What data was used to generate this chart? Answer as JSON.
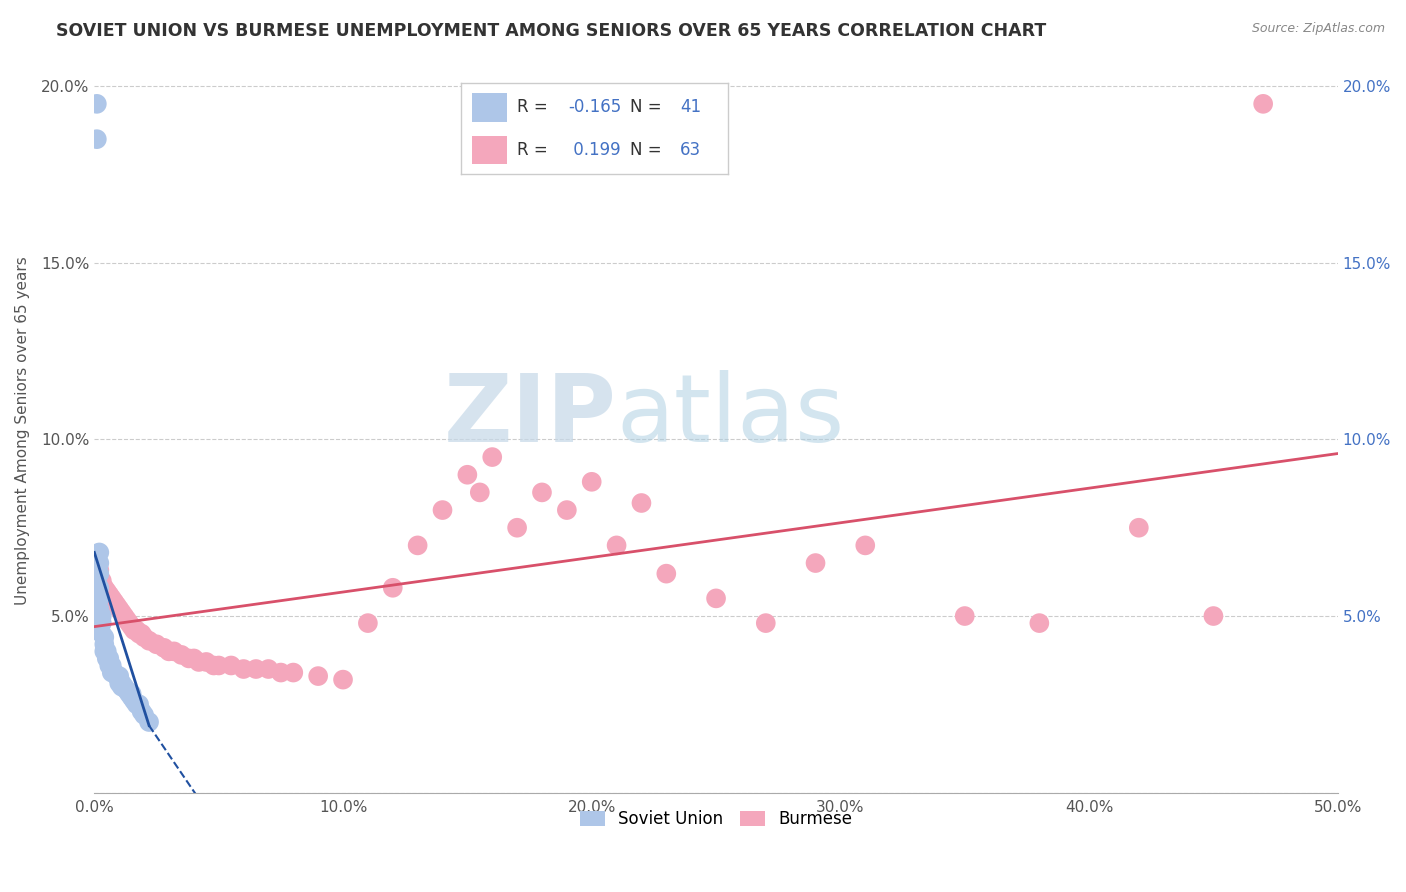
{
  "title": "SOVIET UNION VS BURMESE UNEMPLOYMENT AMONG SENIORS OVER 65 YEARS CORRELATION CHART",
  "source": "Source: ZipAtlas.com",
  "ylabel": "Unemployment Among Seniors over 65 years",
  "xlim": [
    0.0,
    0.5
  ],
  "ylim": [
    0.0,
    0.205
  ],
  "xticks": [
    0.0,
    0.1,
    0.2,
    0.3,
    0.4,
    0.5
  ],
  "xticklabels": [
    "0.0%",
    "10.0%",
    "20.0%",
    "30.0%",
    "40.0%",
    "50.0%"
  ],
  "yticks": [
    0.0,
    0.05,
    0.1,
    0.15,
    0.2
  ],
  "yticklabels_left": [
    "",
    "5.0%",
    "10.0%",
    "15.0%",
    "20.0%"
  ],
  "yticklabels_right": [
    "",
    "5.0%",
    "10.0%",
    "15.0%",
    "20.0%"
  ],
  "soviet_color": "#aec6e8",
  "burmese_color": "#f4a7bc",
  "soviet_line_color": "#2050a0",
  "burmese_line_color": "#d8506a",
  "soviet_R": -0.165,
  "soviet_N": 41,
  "burmese_R": 0.199,
  "burmese_N": 63,
  "legend_label_soviet": "Soviet Union",
  "legend_label_burmese": "Burmese",
  "watermark_zip": "ZIP",
  "watermark_atlas": "atlas",
  "background_color": "#ffffff",
  "soviet_x": [
    0.001,
    0.001,
    0.001,
    0.001,
    0.001,
    0.002,
    0.002,
    0.002,
    0.002,
    0.002,
    0.002,
    0.003,
    0.003,
    0.003,
    0.004,
    0.004,
    0.004,
    0.005,
    0.005,
    0.006,
    0.006,
    0.007,
    0.007,
    0.008,
    0.009,
    0.01,
    0.01,
    0.01,
    0.011,
    0.011,
    0.012,
    0.013,
    0.014,
    0.015,
    0.015,
    0.016,
    0.017,
    0.018,
    0.019,
    0.02,
    0.022
  ],
  "soviet_y": [
    0.195,
    0.185,
    0.065,
    0.06,
    0.055,
    0.068,
    0.065,
    0.062,
    0.058,
    0.055,
    0.052,
    0.05,
    0.048,
    0.045,
    0.044,
    0.042,
    0.04,
    0.04,
    0.038,
    0.038,
    0.036,
    0.036,
    0.034,
    0.034,
    0.033,
    0.033,
    0.032,
    0.031,
    0.031,
    0.03,
    0.03,
    0.029,
    0.028,
    0.028,
    0.027,
    0.026,
    0.025,
    0.025,
    0.023,
    0.022,
    0.02
  ],
  "burmese_x": [
    0.001,
    0.002,
    0.003,
    0.004,
    0.005,
    0.006,
    0.007,
    0.008,
    0.009,
    0.01,
    0.011,
    0.012,
    0.013,
    0.014,
    0.015,
    0.016,
    0.017,
    0.018,
    0.019,
    0.02,
    0.022,
    0.025,
    0.028,
    0.03,
    0.032,
    0.035,
    0.038,
    0.04,
    0.042,
    0.045,
    0.048,
    0.05,
    0.055,
    0.06,
    0.065,
    0.07,
    0.075,
    0.08,
    0.09,
    0.1,
    0.11,
    0.12,
    0.13,
    0.14,
    0.15,
    0.155,
    0.16,
    0.17,
    0.18,
    0.19,
    0.2,
    0.21,
    0.22,
    0.23,
    0.25,
    0.27,
    0.29,
    0.31,
    0.35,
    0.38,
    0.42,
    0.45,
    0.47
  ],
  "burmese_y": [
    0.065,
    0.063,
    0.06,
    0.058,
    0.057,
    0.056,
    0.055,
    0.054,
    0.053,
    0.052,
    0.051,
    0.05,
    0.049,
    0.048,
    0.047,
    0.046,
    0.046,
    0.045,
    0.045,
    0.044,
    0.043,
    0.042,
    0.041,
    0.04,
    0.04,
    0.039,
    0.038,
    0.038,
    0.037,
    0.037,
    0.036,
    0.036,
    0.036,
    0.035,
    0.035,
    0.035,
    0.034,
    0.034,
    0.033,
    0.032,
    0.048,
    0.058,
    0.07,
    0.08,
    0.09,
    0.085,
    0.095,
    0.075,
    0.085,
    0.08,
    0.088,
    0.07,
    0.082,
    0.062,
    0.055,
    0.048,
    0.065,
    0.07,
    0.05,
    0.048,
    0.075,
    0.05,
    0.195
  ],
  "burmese_line_x_start": 0.0,
  "burmese_line_x_end": 0.5,
  "burmese_line_y_start": 0.047,
  "burmese_line_y_end": 0.096,
  "soviet_line_x_start": 0.0,
  "soviet_line_x_end": 0.022,
  "soviet_line_y_start": 0.068,
  "soviet_line_y_end": 0.019,
  "soviet_line_dashed_x_start": 0.022,
  "soviet_line_dashed_x_end": 0.05,
  "soviet_line_dashed_y_start": 0.019,
  "soviet_line_dashed_y_end": -0.01
}
